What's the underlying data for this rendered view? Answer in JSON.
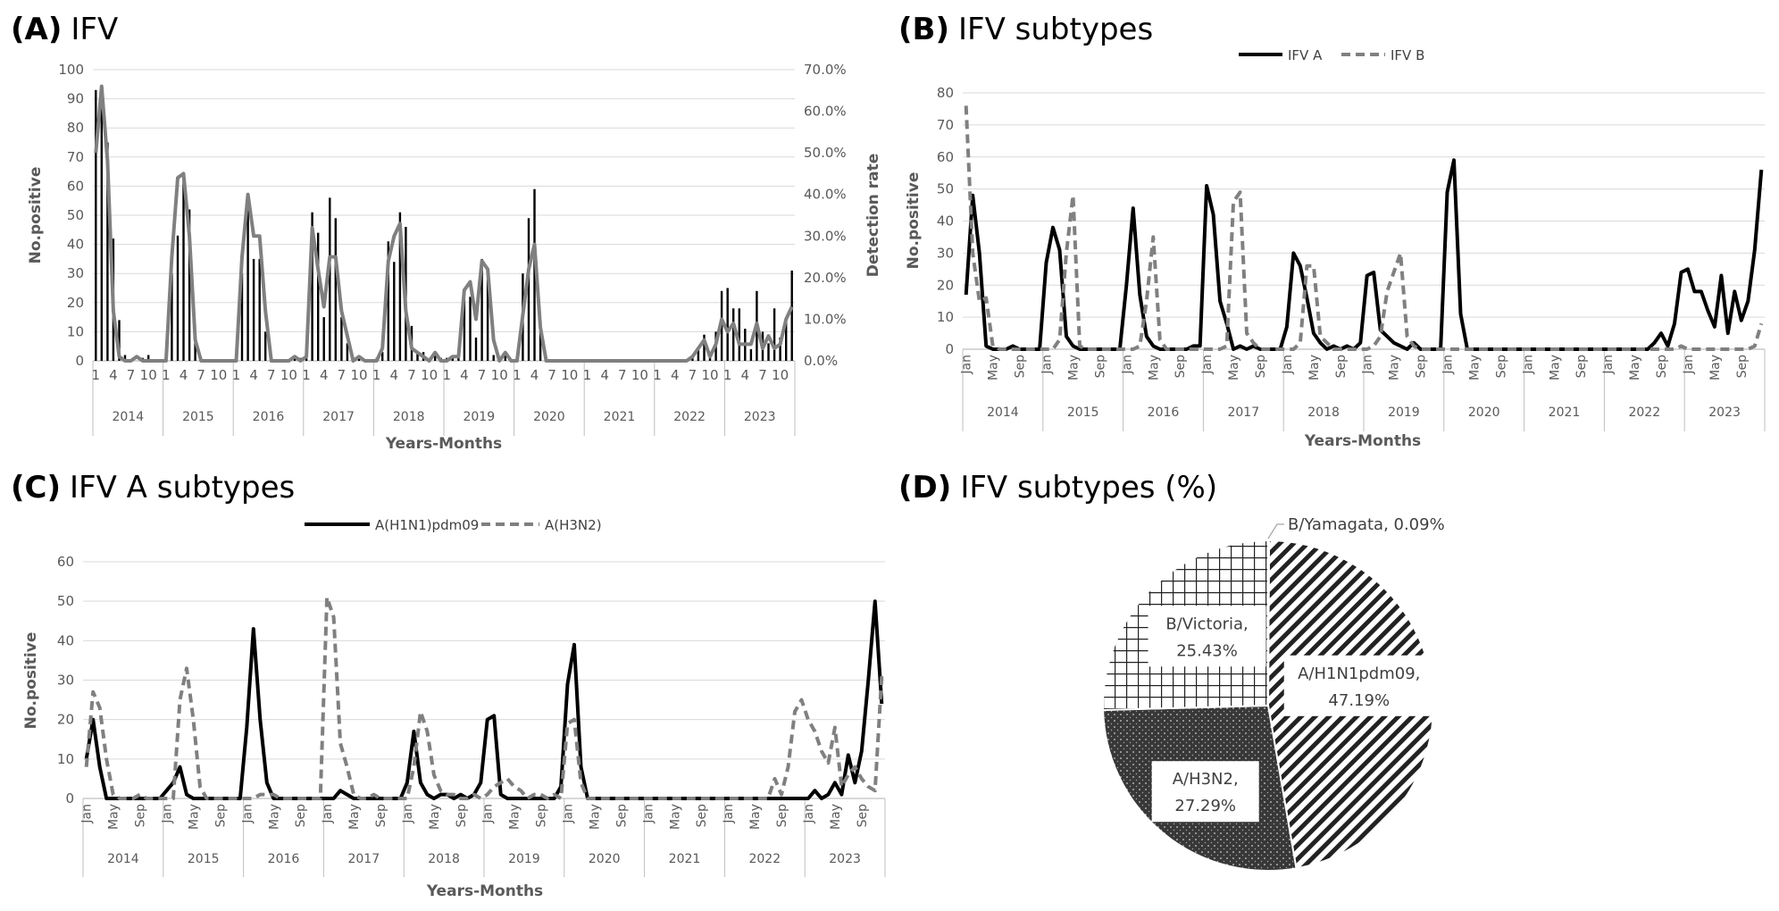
{
  "chart_data": [
    {
      "id": "A",
      "type": "bar",
      "panel_label": "(A)",
      "title": "IFV",
      "xlabel": "Years-Months",
      "ylabel": "No.positive",
      "y2label": "Detection rate",
      "ylim": [
        0,
        100
      ],
      "yticks": [
        0,
        10,
        20,
        30,
        40,
        50,
        60,
        70,
        80,
        90,
        100
      ],
      "y2lim": [
        0,
        70
      ],
      "y2ticks": [
        "0.0%",
        "10.0%",
        "20.0%",
        "30.0%",
        "40.0%",
        "50.0%",
        "60.0%",
        "70.0%"
      ],
      "month_ticks": [
        "1",
        "4",
        "7",
        "10"
      ],
      "years": [
        "2014",
        "2015",
        "2016",
        "2017",
        "2018",
        "2019",
        "2020",
        "2021",
        "2022",
        "2023"
      ],
      "series": [
        {
          "name": "No.positive",
          "values": [
            93,
            93,
            75,
            42,
            14,
            2,
            0,
            0,
            1,
            2,
            0,
            0,
            1,
            30,
            43,
            63,
            52,
            8,
            0,
            0,
            0,
            0,
            0,
            0,
            1,
            30,
            57,
            35,
            35,
            10,
            0,
            0,
            0,
            0,
            1,
            1,
            1,
            51,
            44,
            15,
            56,
            49,
            15,
            6,
            0,
            1,
            0,
            0,
            1,
            3,
            41,
            34,
            51,
            46,
            12,
            3,
            3,
            0,
            2,
            1,
            1,
            2,
            2,
            21,
            22,
            8,
            35,
            31,
            2,
            0,
            2,
            0,
            1,
            30,
            49,
            59,
            11,
            0,
            0,
            0,
            0,
            0,
            0,
            0,
            0,
            0,
            0,
            0,
            0,
            0,
            0,
            0,
            0,
            0,
            0,
            0,
            0,
            0,
            0,
            0,
            0,
            0,
            1,
            4,
            9,
            1,
            10,
            24,
            25,
            18,
            18,
            11,
            4,
            24,
            10,
            6,
            18,
            8,
            15,
            31
          ]
        },
        {
          "name": "Detection rate",
          "values": [
            50,
            66,
            48,
            12,
            1,
            0,
            0,
            1,
            0,
            0,
            0,
            0,
            0,
            25,
            44,
            45,
            30,
            5,
            0,
            0,
            0,
            0,
            0,
            0,
            0,
            25,
            40,
            30,
            30,
            12,
            0,
            0,
            0,
            0,
            1,
            0,
            1,
            32,
            22,
            13,
            25,
            25,
            12,
            6,
            0,
            1,
            0,
            0,
            0,
            3,
            24,
            30,
            33,
            12,
            3,
            2,
            1,
            0,
            2,
            0,
            0,
            1,
            1,
            17,
            19,
            10,
            24,
            22,
            5,
            0,
            2,
            0,
            0,
            11,
            22,
            28,
            8,
            0,
            0,
            0,
            0,
            0,
            0,
            0,
            0,
            0,
            0,
            0,
            0,
            0,
            0,
            0,
            0,
            0,
            0,
            0,
            0,
            0,
            0,
            0,
            0,
            0,
            1,
            3,
            5,
            1,
            4,
            10,
            7,
            9,
            4,
            4,
            4,
            9,
            3,
            6,
            3,
            4,
            10,
            13
          ]
        }
      ]
    },
    {
      "id": "B",
      "type": "line",
      "panel_label": "(B)",
      "title": "IFV subtypes",
      "xlabel": "Years-Months",
      "ylabel": "No.positive",
      "ylim": [
        0,
        80
      ],
      "yticks": [
        0,
        10,
        20,
        30,
        40,
        50,
        60,
        70,
        80
      ],
      "month_ticks": [
        "Jan",
        "May",
        "Sep"
      ],
      "years": [
        "2014",
        "2015",
        "2016",
        "2017",
        "2018",
        "2019",
        "2020",
        "2021",
        "2022",
        "2023"
      ],
      "series": [
        {
          "name": "IFV A",
          "values": [
            17,
            48,
            30,
            1,
            0,
            0,
            0,
            1,
            0,
            0,
            0,
            0,
            27,
            38,
            31,
            4,
            1,
            0,
            0,
            0,
            0,
            0,
            0,
            0,
            20,
            44,
            17,
            4,
            1,
            0,
            0,
            0,
            0,
            0,
            1,
            1,
            51,
            42,
            15,
            8,
            0,
            1,
            0,
            1,
            0,
            0,
            0,
            0,
            7,
            30,
            26,
            16,
            5,
            2,
            0,
            1,
            0,
            1,
            0,
            2,
            23,
            24,
            6,
            4,
            2,
            1,
            0,
            2,
            0,
            0,
            0,
            0,
            49,
            59,
            11,
            0,
            0,
            0,
            0,
            0,
            0,
            0,
            0,
            0,
            0,
            0,
            0,
            0,
            0,
            0,
            0,
            0,
            0,
            0,
            0,
            0,
            0,
            0,
            0,
            0,
            0,
            0,
            0,
            2,
            5,
            1,
            8,
            24,
            25,
            18,
            18,
            12,
            7,
            23,
            5,
            18,
            9,
            15,
            31,
            56
          ]
        },
        {
          "name": "IFV B",
          "values": [
            76,
            30,
            15,
            16,
            1,
            0,
            0,
            0,
            0,
            0,
            0,
            0,
            0,
            0,
            3,
            30,
            48,
            1,
            0,
            0,
            0,
            0,
            0,
            0,
            0,
            0,
            1,
            15,
            35,
            3,
            0,
            0,
            0,
            0,
            0,
            0,
            0,
            0,
            0,
            1,
            46,
            49,
            5,
            2,
            0,
            0,
            0,
            0,
            0,
            0,
            2,
            26,
            26,
            4,
            2,
            0,
            0,
            0,
            0,
            0,
            0,
            1,
            4,
            18,
            24,
            30,
            4,
            1,
            0,
            0,
            0,
            0,
            0,
            0,
            0,
            0,
            0,
            0,
            0,
            0,
            0,
            0,
            0,
            0,
            0,
            0,
            0,
            0,
            0,
            0,
            0,
            0,
            0,
            0,
            0,
            0,
            0,
            0,
            0,
            0,
            0,
            0,
            0,
            0,
            0,
            0,
            0,
            1,
            0,
            0,
            0,
            0,
            0,
            0,
            0,
            0,
            0,
            0,
            1,
            8
          ]
        }
      ]
    },
    {
      "id": "C",
      "type": "line",
      "panel_label": "(C)",
      "title": "IFV A subtypes",
      "xlabel": "Years-Months",
      "ylabel": "No.positive",
      "ylim": [
        0,
        60
      ],
      "yticks": [
        0,
        10,
        20,
        30,
        40,
        50,
        60
      ],
      "month_ticks": [
        "Jan",
        "May",
        "Sep"
      ],
      "years": [
        "2014",
        "2015",
        "2016",
        "2017",
        "2018",
        "2019",
        "2020",
        "2021",
        "2022",
        "2023"
      ],
      "series": [
        {
          "name": "A(H1N1)pdm09",
          "values": [
            10,
            20,
            8,
            0,
            0,
            0,
            0,
            0,
            0,
            0,
            0,
            0,
            2,
            4,
            8,
            1,
            0,
            0,
            0,
            0,
            0,
            0,
            0,
            0,
            18,
            43,
            20,
            4,
            0,
            0,
            0,
            0,
            0,
            0,
            0,
            0,
            0,
            0,
            2,
            1,
            0,
            0,
            0,
            0,
            0,
            0,
            0,
            0,
            4,
            17,
            4,
            1,
            0,
            1,
            1,
            0,
            1,
            0,
            1,
            4,
            20,
            21,
            1,
            0,
            0,
            0,
            0,
            0,
            0,
            0,
            0,
            3,
            29,
            39,
            8,
            0,
            0,
            0,
            0,
            0,
            0,
            0,
            0,
            0,
            0,
            0,
            0,
            0,
            0,
            0,
            0,
            0,
            0,
            0,
            0,
            0,
            0,
            0,
            0,
            0,
            0,
            0,
            0,
            0,
            0,
            0,
            0,
            0,
            0,
            2,
            0,
            1,
            4,
            1,
            11,
            4,
            12,
            30,
            50,
            24
          ]
        },
        {
          "name": "A(H3N2)",
          "values": [
            8,
            27,
            23,
            10,
            1,
            0,
            0,
            0,
            1,
            0,
            0,
            0,
            0,
            0,
            25,
            33,
            20,
            3,
            0,
            0,
            0,
            0,
            0,
            0,
            0,
            0,
            1,
            1,
            1,
            0,
            0,
            0,
            0,
            0,
            0,
            0,
            51,
            46,
            14,
            8,
            1,
            0,
            0,
            1,
            0,
            0,
            0,
            0,
            0,
            8,
            22,
            17,
            6,
            2,
            1,
            1,
            0,
            0,
            1,
            0,
            1,
            3,
            4,
            5,
            3,
            2,
            0,
            1,
            1,
            0,
            1,
            0,
            19,
            20,
            4,
            0,
            0,
            0,
            0,
            0,
            0,
            0,
            0,
            0,
            0,
            0,
            0,
            0,
            0,
            0,
            0,
            0,
            0,
            0,
            0,
            0,
            0,
            0,
            0,
            0,
            0,
            0,
            0,
            5,
            1,
            8,
            22,
            25,
            20,
            17,
            12,
            9,
            18,
            3,
            6,
            8,
            5,
            3,
            2,
            31
          ]
        }
      ]
    },
    {
      "id": "D",
      "type": "pie",
      "panel_label": "(D)",
      "title": "IFV subtypes (%)",
      "slices": [
        {
          "name": "A/H1N1pdm09",
          "value": 47.19,
          "label_name": "A/H1N1pdm09,",
          "label_value": "47.19%"
        },
        {
          "name": "A/H3N2",
          "value": 27.29,
          "label_name": "A/H3N2,",
          "label_value": "27.29%"
        },
        {
          "name": "B/Victoria",
          "value": 25.43,
          "label_name": "B/Victoria,",
          "label_value": "25.43%"
        },
        {
          "name": "B/Yamagata",
          "value": 0.09,
          "label_name": "B/Yamagata, 0.09%",
          "label_value": ""
        }
      ]
    }
  ]
}
